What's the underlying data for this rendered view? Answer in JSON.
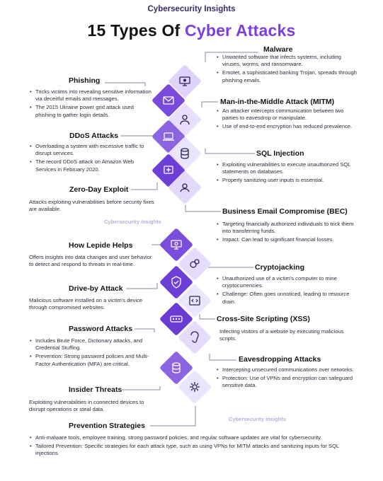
{
  "header": {
    "brand": "Cybersecurity Insights",
    "title_part1": "15 Types Of ",
    "title_part2": "Cyber Attacks"
  },
  "watermarks": [
    "Cybersecurity Insights",
    "Cybersecurity Insights"
  ],
  "colors": {
    "accent": "#7b3fe0",
    "tile_dark": "#6d3fd6",
    "tile_mid": "#9b7ae8",
    "tile_light": "#e3d9fb",
    "connector": "#8a8aa0"
  },
  "sections": {
    "malware": {
      "title": "Malware",
      "bullets": [
        "Unwanted software that infects systems, including viruses, worms, and ransomware.",
        "Emotet, a sophisticated banking Trojan, spreads through phishing emails."
      ]
    },
    "phishing": {
      "title": "Phishing",
      "bullets": [
        "Tricks victims into revealing sensitive information via deceitful emails and messages.",
        "The 2015 Ukraine power grid attack used phishing to gather login details."
      ]
    },
    "mitm": {
      "title": "Man-in-the-Middle Attack (MITM)",
      "bullets": [
        "An attacker intercepts communication between two parties to eavesdrop or manipulate.",
        "Use of end-to-end encryption has reduced prevalence."
      ]
    },
    "ddos": {
      "title": "DDoS Attacks",
      "bullets": [
        "Overloading a system with excessive traffic to disrupt services.",
        "The record DDoS attack on Amazon Web Services in February 2020."
      ]
    },
    "sql": {
      "title": "SQL Injection",
      "bullets": [
        "Exploiting vulnerabilities to execute unauthorized SQL statements on databases.",
        "Properly sanitizing user inputs is essential."
      ]
    },
    "zeroday": {
      "title": "Zero-Day Exploit",
      "text": "Attacks exploiting vulnerabilities before security fixes are available."
    },
    "bec": {
      "title": "Business Email Compromise (BEC)",
      "bullets": [
        "Targeting financially authorized individuals to trick them into transferring funds.",
        "Impact: Can lead to significant financial losses."
      ]
    },
    "lepide": {
      "title": "How Lepide Helps",
      "text": "Offers insights into data changes and user behavior to detect and respond to threats in real-time."
    },
    "cryptojacking": {
      "title": "Cryptojacking",
      "bullets": [
        "Unauthorized use of a victim's computer to mine cryptocurrencies.",
        "Challenge: Often goes unnoticed, leading to resource drain."
      ]
    },
    "driveby": {
      "title": "Drive-by Attack",
      "text": "Malicious software installed on a victim's device through compromised websites."
    },
    "xss": {
      "title": "Cross-Site Scripting (XSS)",
      "text": "Infecting visitors of a website by executing malicious scripts."
    },
    "password": {
      "title": "Password Attacks",
      "bullets": [
        "Includes Brute Force, Dictionary attacks, and Credential Stuffing.",
        "Prevention: Strong password policies and Multi-Factor Authentication (MFA) are critical."
      ]
    },
    "eavesdropping": {
      "title": "Eavesdropping Attacks",
      "bullets": [
        "Intercepting unsecured communications over networks.",
        "Protection: Use of VPNs and encryption can safeguard sensitive data."
      ]
    },
    "insider": {
      "title": "Insider Threats",
      "text": "Exploiting vulnerabilities in connected devices to disrupt operations or steal data."
    },
    "prevention": {
      "title": "Prevention Strategies",
      "bullets": [
        "Anti-malware tools, employee training, strong password policies, and regular software updates are vital for cybersecurity.",
        "Tailored Prevention: Specific strategies for each attack type, such as using VPNs for MITM attacks and sanitizing inputs for SQL injections."
      ]
    }
  },
  "icons": [
    "malware-monitor-icon",
    "phishing-email-icon",
    "mitm-person-icon",
    "ddos-laptop-icon",
    "sql-database-icon",
    "zero-day-bug-icon",
    "bec-email-icon",
    "lepide-monitor-icon",
    "cryptojacking-coin-icon",
    "driveby-shield-icon",
    "xss-code-icon",
    "password-dots-icon",
    "eavesdropping-ear-icon",
    "insider-database-icon",
    "insider-gear-icon"
  ]
}
